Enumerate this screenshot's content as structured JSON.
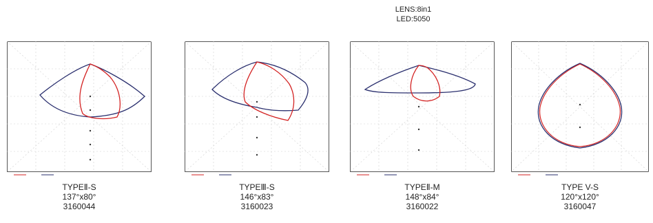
{
  "header": {
    "lens": "LENS:8in1",
    "led": "LED:5050"
  },
  "diagrams": [
    {
      "type": "TYPEⅡ-S",
      "angle": "137°x80°",
      "code": "3160044"
    },
    {
      "type": "TYPEⅢ-S",
      "angle": "146°x83°",
      "code": "3160023"
    },
    {
      "type": "TYPEⅡ-M",
      "angle": "148°x84°",
      "code": "3160022"
    },
    {
      "type": "TYPE V-S",
      "angle": "120°x120°",
      "code": "3160047"
    }
  ],
  "colors": {
    "curve_a": "#2a2f6e",
    "curve_b": "#d32222",
    "grid": "#c9c9c9",
    "frame": "#555555"
  },
  "icons": [
    "isolux-grid-icon"
  ]
}
